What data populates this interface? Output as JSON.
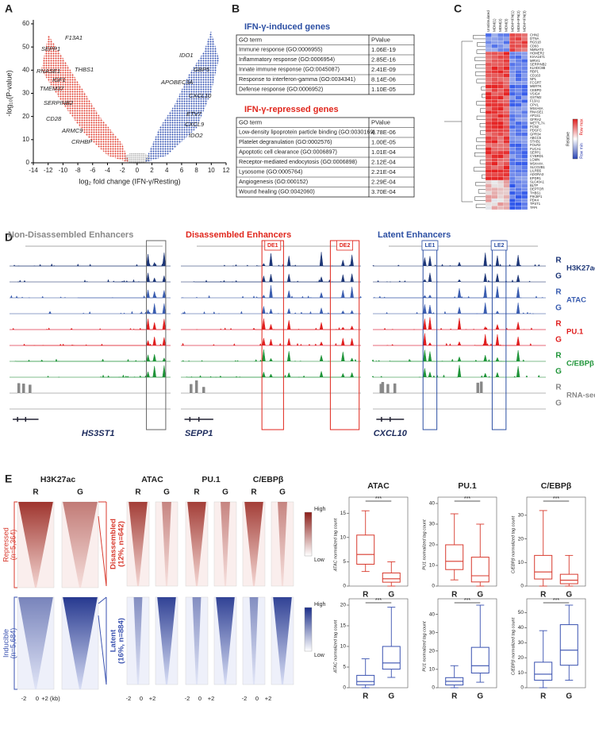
{
  "panel_a": {
    "label": "A",
    "xlabel": "log₂ fold change (IFN-γ/Resting)",
    "ylabel": "-log₁₀(P-value)",
    "xlim": [
      -14,
      12
    ],
    "xticks": [
      -14,
      -12,
      -10,
      -8,
      -6,
      -4,
      -2,
      0,
      2,
      4,
      6,
      8,
      10,
      12
    ],
    "ylim": [
      0,
      60
    ],
    "yticks": [
      0,
      10,
      20,
      30,
      40,
      50,
      60
    ],
    "genes": [
      "F13A1",
      "SEPP1",
      "RNASE1",
      "THBS1",
      "IGF1",
      "TMEM37",
      "SERPINB2",
      "CD28",
      "ARMC9",
      "CRHBP",
      "IDO1",
      "GBP5",
      "APOBEC3A",
      "CXCL10",
      "ETV7",
      "CXCL9",
      "IDO2"
    ]
  },
  "panel_b": {
    "label": "B",
    "induced": {
      "title": "IFN-γ-induced genes",
      "header": [
        "GO term",
        "PValue"
      ],
      "rows": [
        [
          "Immune response (GO:0006955)",
          "1.06E-19"
        ],
        [
          "Inflammatory response (GO:0006954)",
          "2.85E-16"
        ],
        [
          "Innate immune response (GO:0045087)",
          "2.41E-09"
        ],
        [
          "Response to interferon-gamma (GO:0034341)",
          "8.14E-06"
        ],
        [
          "Defense response (GO:0006952)",
          "1.10E-05"
        ]
      ]
    },
    "repressed": {
      "title": "IFN-γ-repressed genes",
      "header": [
        "GO term",
        "PValue"
      ],
      "rows": [
        [
          "Low-density lipoprotein particle binding (GO:0030169)",
          "4.78E-06"
        ],
        [
          "Platelet degranulation (GO:0002576)",
          "1.00E-05"
        ],
        [
          "Apoptotic cell clearance (GO:0006897)",
          "1.01E-04"
        ],
        [
          "Receptor-mediated endocytosis (GO:0006898)",
          "2.12E-04"
        ],
        [
          "Lysosome (GO:0005764)",
          "2.21E-04"
        ],
        [
          "Angiogenesis (GO:000152)",
          "2.29E-04"
        ],
        [
          "Wound healing (GO:0042060)",
          "3.70E-04"
        ]
      ]
    }
  },
  "panel_c": {
    "label": "C",
    "columns": [
      "Unstimulated",
      "MDM(1)",
      "MDM(2)",
      "MDM(3)",
      "MDM+IFN(1)",
      "MDM+IFN(2)",
      "MDM+IFN(3)"
    ],
    "genes": [
      "CHN2",
      "DTNA",
      "RGS18",
      "CD93",
      "NMNAT3",
      "HOMER2",
      "KIAA1671",
      "MRVI1",
      "SERPINB2",
      "KLHDC8B",
      "RBP1",
      "CD163",
      "NPL",
      "FCGRT",
      "MERTK",
      "CEBPD",
      "VSIG4",
      "GSTM2",
      "F13A1",
      "CPVL",
      "MS4A6A",
      "RNASE1",
      "AP1S1",
      "GFRA2",
      "METTL7A",
      "FCN2",
      "PDGFC",
      "GPR34",
      "ABCC5",
      "STAB1",
      "FOLR2",
      "FUCA1",
      "SEPP1",
      "CYBRD1",
      "LGMN",
      "MS4A4A",
      "SLCO2B1",
      "LILRB5",
      "ADORA3",
      "EPDR1",
      "SLC40A1",
      "BLTP",
      "DEPTOR",
      "THBS1",
      "PIK3IP1",
      "PDK4",
      "TPST1",
      "TFPI"
    ],
    "legend": [
      "Relative",
      "Row max",
      "Row min"
    ]
  },
  "panel_d": {
    "label": "D",
    "sections": [
      {
        "title": "Non-Disassembled Enhancers",
        "gene": "HS3ST1",
        "boxes": []
      },
      {
        "title": "Disassembled Enhancers",
        "gene": "SEPP1",
        "boxes": [
          "DE1",
          "DE2"
        ]
      },
      {
        "title": "Latent Enhancers",
        "gene": "CXCL10",
        "boxes": [
          "LE1",
          "LE2"
        ]
      }
    ],
    "tracks": [
      {
        "name": "H3K27ac",
        "color": "#1d3677",
        "conditions": [
          "R",
          "G"
        ]
      },
      {
        "name": "ATAC",
        "color": "#3a5db0",
        "conditions": [
          "R",
          "G"
        ]
      },
      {
        "name": "PU.1",
        "color": "#e01e1e",
        "conditions": [
          "R",
          "G"
        ]
      },
      {
        "name": "C/EBPβ",
        "color": "#1e9438",
        "conditions": [
          "R",
          "G"
        ]
      },
      {
        "name": "RNA-seq",
        "color": "#888888",
        "conditions": [
          "R",
          "G"
        ]
      }
    ]
  },
  "panel_e": {
    "label": "E",
    "marks": [
      "H3K27ac",
      "ATAC",
      "PU.1",
      "C/EBPβ"
    ],
    "conditions": [
      "R",
      "G"
    ],
    "repressed": {
      "label": [
        "Repressed",
        "(n=5,364)"
      ],
      "subset": [
        "Disassembled",
        "(12%, n=642)"
      ],
      "color": "#d83a2e"
    },
    "inducible": {
      "label": [
        "Inducible",
        "(n=5,684)"
      ],
      "subset": [
        "Latent",
        "(16%, n=884)"
      ],
      "color": "#3a52b0"
    },
    "xlabels_main": [
      "-2",
      "0",
      "+2 (kb)"
    ],
    "xlabels": [
      "-2",
      "0",
      "+2"
    ],
    "legend": [
      "High",
      "Low"
    ],
    "boxplots": [
      {
        "title": "ATAC",
        "ylabel": "ATAC normalized tag count",
        "group": "repressed",
        "ylim": [
          0,
          17
        ],
        "yticks": [
          0,
          5,
          10,
          15
        ],
        "sig": "***",
        "boxes": [
          {
            "name": "R",
            "whislo": 3,
            "q1": 4.5,
            "med": 6.5,
            "q3": 10.5,
            "whishi": 15.5
          },
          {
            "name": "G",
            "whislo": 0,
            "q1": 0.8,
            "med": 1.5,
            "q3": 2.7,
            "whishi": 5
          }
        ]
      },
      {
        "title": "PU.1",
        "ylabel": "PU1 normalized tag count",
        "group": "repressed",
        "ylim": [
          0,
          40
        ],
        "yticks": [
          0,
          10,
          20,
          30,
          40
        ],
        "sig": "***",
        "boxes": [
          {
            "name": "R",
            "whislo": 3,
            "q1": 8,
            "med": 12,
            "q3": 20,
            "whishi": 35
          },
          {
            "name": "G",
            "whislo": 0,
            "q1": 2,
            "med": 5,
            "q3": 14,
            "whishi": 30
          }
        ]
      },
      {
        "title": "C/EBPβ",
        "ylabel": "C/EBPβ normalized tag count",
        "group": "repressed",
        "ylim": [
          0,
          35
        ],
        "yticks": [
          0,
          10,
          20,
          30
        ],
        "sig": "***",
        "boxes": [
          {
            "name": "R",
            "whislo": 0,
            "q1": 3,
            "med": 6,
            "q3": 13,
            "whishi": 32
          },
          {
            "name": "G",
            "whislo": 0,
            "q1": 1,
            "med": 2.5,
            "q3": 5,
            "whishi": 13
          }
        ]
      },
      {
        "ylabel": "ATAC normalized tag count",
        "group": "inducible",
        "ylim": [
          0,
          20
        ],
        "yticks": [
          0,
          5,
          10,
          15,
          20
        ],
        "sig": "***",
        "boxes": [
          {
            "name": "R",
            "whislo": 0,
            "q1": 0.7,
            "med": 1.5,
            "q3": 3,
            "whishi": 7
          },
          {
            "name": "G",
            "whislo": 2.5,
            "q1": 4.5,
            "med": 6,
            "q3": 10,
            "whishi": 19.5
          }
        ]
      },
      {
        "ylabel": "PU1 normalized tag count",
        "group": "inducible",
        "ylim": [
          0,
          45
        ],
        "yticks": [
          0,
          10,
          20,
          30,
          40
        ],
        "sig": "***",
        "boxes": [
          {
            "name": "R",
            "whislo": 0,
            "q1": 1.5,
            "med": 3.5,
            "q3": 5.5,
            "whishi": 12
          },
          {
            "name": "G",
            "whislo": 3,
            "q1": 8,
            "med": 12,
            "q3": 22,
            "whishi": 45
          }
        ]
      },
      {
        "ylabel": "C/EBPβ normalized tag count",
        "group": "inducible",
        "ylim": [
          0,
          55
        ],
        "yticks": [
          0,
          10,
          20,
          30,
          40,
          50
        ],
        "sig": "***",
        "boxes": [
          {
            "name": "R",
            "whislo": 0,
            "q1": 5,
            "med": 9,
            "q3": 17,
            "whishi": 38
          },
          {
            "name": "G",
            "whislo": 5,
            "q1": 15,
            "med": 25,
            "q3": 42,
            "whishi": 55
          }
        ]
      }
    ]
  }
}
